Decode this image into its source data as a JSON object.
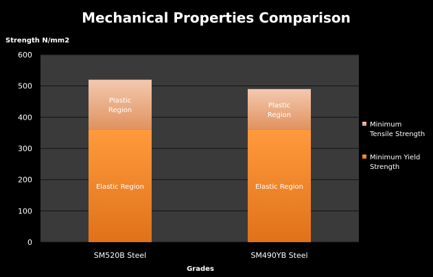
{
  "chart_data": {
    "type": "bar",
    "title": "Mechanical Properties Comparison",
    "ylabel": "Strength N/mm2",
    "xlabel": "Grades",
    "ylim": [
      0,
      600
    ],
    "yticks": [
      "0",
      "100",
      "200",
      "300",
      "400",
      "500",
      "600"
    ],
    "categories": [
      "SM520B Steel",
      "SM490YB Steel"
    ],
    "series": [
      {
        "name": "Minimum Yield Strength",
        "values": [
          360,
          360
        ],
        "region_label": "Elastic Region",
        "color": "#f0801e"
      },
      {
        "name": "Minimum Tensile Strength",
        "values": [
          520,
          490
        ],
        "region_label": "Plastic Region",
        "color": "#e8a27a"
      }
    ],
    "grid": true,
    "legend": "right",
    "colors": {
      "background": "#000000",
      "plot_area": "#3a3a3a",
      "gridline": "#111111"
    }
  }
}
